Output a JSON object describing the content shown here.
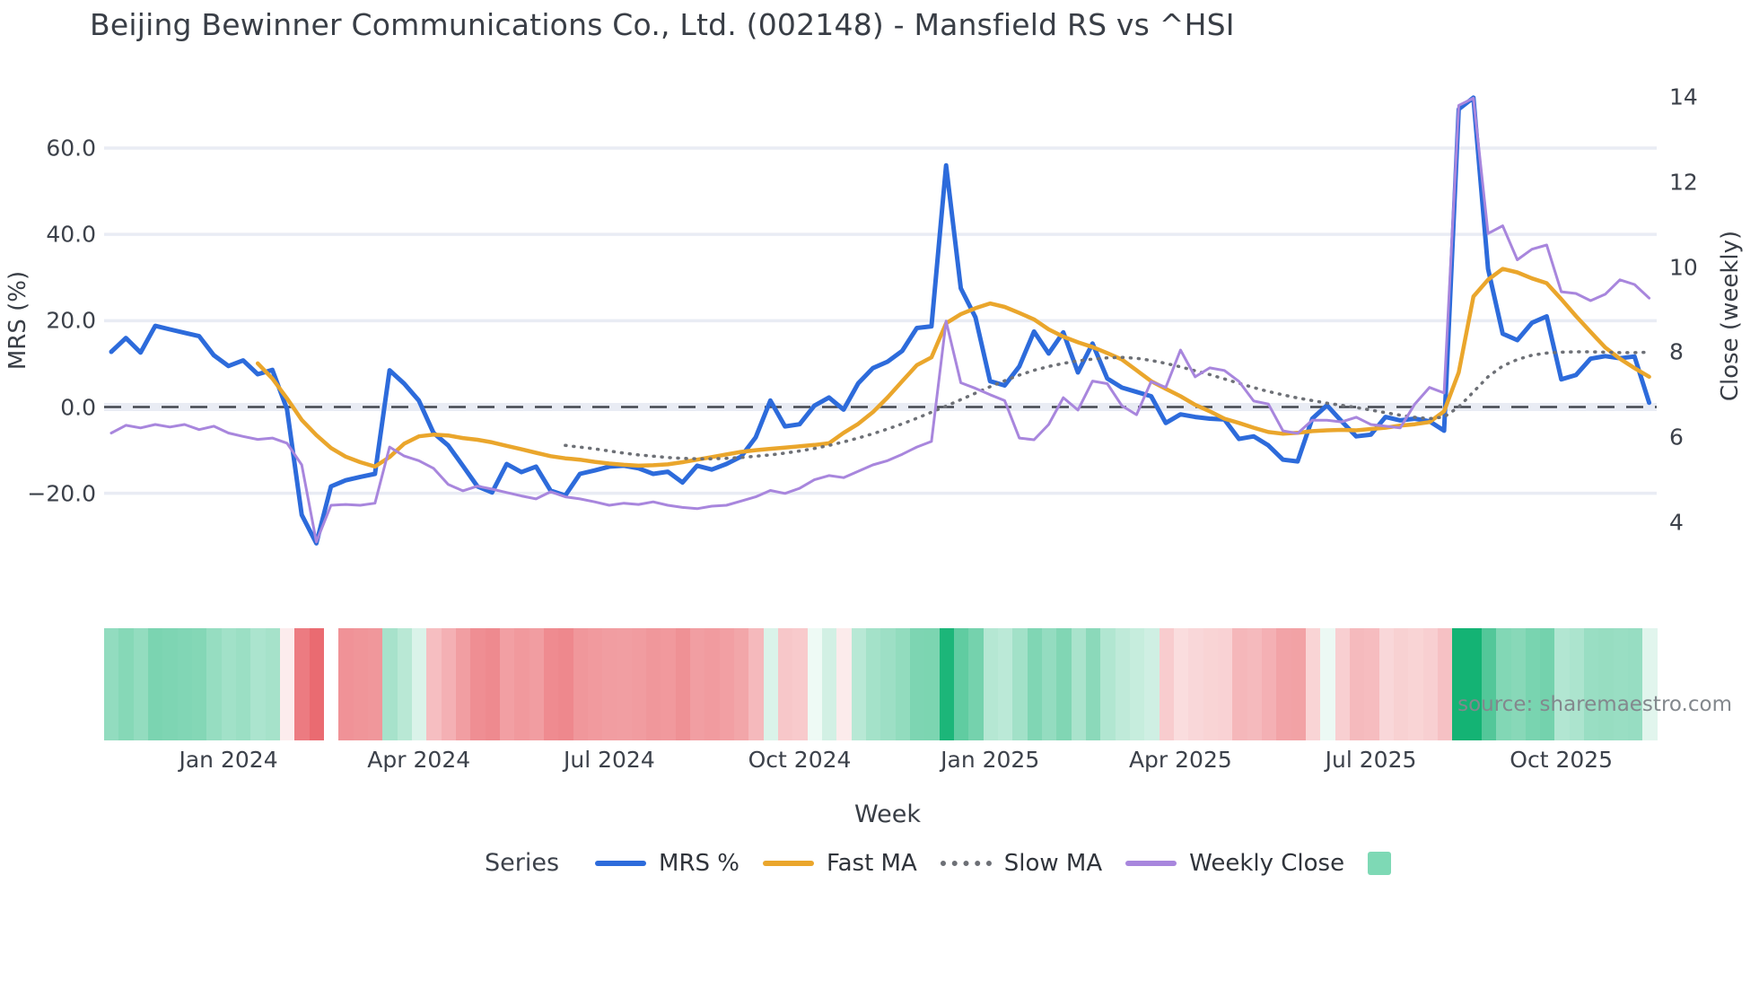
{
  "title": "Beijing Bewinner Communications Co., Ltd. (002148) - Mansfield RS vs ^HSI",
  "source_note": "source: sharemaestro.com",
  "legend": {
    "title": "Series",
    "items": [
      {
        "label": "MRS %",
        "swatch": "line",
        "color": "#2d6bdb"
      },
      {
        "label": "Fast MA",
        "swatch": "line",
        "color": "#eaa62c"
      },
      {
        "label": "Slow MA",
        "swatch": "dotted",
        "color": "#6d7076"
      },
      {
        "label": "Weekly Close",
        "swatch": "line",
        "color": "#a886dd"
      },
      {
        "label": "",
        "swatch": "square",
        "color": "#7ed9b5"
      }
    ]
  },
  "chart_data": {
    "type": "line",
    "title": "Beijing Bewinner Communications Co., Ltd. (002148) - Mansfield RS vs ^HSI",
    "xlabel": "Week",
    "ylabel_left": "MRS (%)",
    "ylabel_right": "Close (weekly)",
    "n_points": 106,
    "grid": true,
    "ylim_left": [
      -39,
      77
    ],
    "ylim_right": [
      2.8,
      14.5
    ],
    "y_ticks_left": [
      {
        "label": "60.0",
        "value": 60
      },
      {
        "label": "40.0",
        "value": 40
      },
      {
        "label": "20.0",
        "value": 20
      },
      {
        "label": "0.0",
        "value": 0
      },
      {
        "label": "−20.0",
        "value": -20
      }
    ],
    "y_ticks_right": [
      {
        "label": "14",
        "value": 14
      },
      {
        "label": "12",
        "value": 12
      },
      {
        "label": "10",
        "value": 10
      },
      {
        "label": "8",
        "value": 8
      },
      {
        "label": "6",
        "value": 6
      },
      {
        "label": "4",
        "value": 4
      }
    ],
    "x_ticks": [
      {
        "index": 8,
        "label": "Jan 2024"
      },
      {
        "index": 21,
        "label": "Apr 2024"
      },
      {
        "index": 34,
        "label": "Jul 2024"
      },
      {
        "index": 47,
        "label": "Oct 2024"
      },
      {
        "index": 60,
        "label": "Jan 2025"
      },
      {
        "index": 73,
        "label": "Apr 2025"
      },
      {
        "index": 86,
        "label": "Jul 2025"
      },
      {
        "index": 99,
        "label": "Oct 2025"
      }
    ],
    "zero_line": {
      "value": 0,
      "color": "#42464e",
      "style": "dashed"
    },
    "series": [
      {
        "name": "MRS %",
        "axis": "left",
        "color": "#2d6bdb",
        "width": 5,
        "style": "solid",
        "values": [
          12.8,
          16.0,
          12.6,
          18.8,
          18.0,
          17.2,
          16.4,
          12.0,
          9.5,
          10.8,
          7.6,
          8.6,
          -0.5,
          -25.0,
          -31.6,
          -18.4,
          -17.0,
          -16.2,
          -15.5,
          8.5,
          5.4,
          1.5,
          -6.0,
          -8.9,
          -13.6,
          -18.4,
          -19.8,
          -13.2,
          -15.1,
          -13.8,
          -19.4,
          -20.5,
          -15.5,
          -14.7,
          -13.8,
          -13.6,
          -14.2,
          -15.5,
          -15.0,
          -17.5,
          -13.6,
          -14.5,
          -13.2,
          -11.5,
          -7.0,
          1.5,
          -4.5,
          -4.0,
          0.3,
          2.2,
          -0.6,
          5.5,
          9.0,
          10.5,
          13.0,
          18.3,
          18.7,
          56.0,
          27.5,
          20.8,
          6.0,
          5.0,
          9.4,
          17.5,
          12.4,
          17.3,
          8.0,
          14.7,
          6.6,
          4.5,
          3.5,
          2.5,
          -3.7,
          -1.7,
          -2.3,
          -2.7,
          -2.9,
          -7.4,
          -6.8,
          -8.9,
          -12.2,
          -12.6,
          -2.7,
          0.4,
          -3.3,
          -6.8,
          -6.4,
          -2.3,
          -3.1,
          -2.7,
          -3.3,
          -5.5,
          69.0,
          71.7,
          32.0,
          17.0,
          15.5,
          19.5,
          21.0,
          6.4,
          7.4,
          11.2,
          11.8,
          11.3,
          11.7,
          1.0
        ]
      },
      {
        "name": "Fast MA",
        "axis": "left",
        "color": "#eaa62c",
        "width": 4.5,
        "style": "solid",
        "values": [
          null,
          null,
          null,
          null,
          null,
          null,
          null,
          null,
          null,
          null,
          10.1,
          6.6,
          2.0,
          -3.0,
          -6.5,
          -9.5,
          -11.5,
          -12.8,
          -13.8,
          -11.6,
          -8.5,
          -6.8,
          -6.4,
          -6.6,
          -7.2,
          -7.6,
          -8.2,
          -9.0,
          -9.8,
          -10.6,
          -11.4,
          -11.9,
          -12.2,
          -12.7,
          -13.1,
          -13.4,
          -13.6,
          -13.5,
          -13.3,
          -12.8,
          -12.2,
          -11.6,
          -11.0,
          -10.4,
          -10.0,
          -9.7,
          -9.4,
          -9.1,
          -8.8,
          -8.4,
          -6.0,
          -3.9,
          -1.2,
          2.2,
          6.0,
          9.7,
          11.5,
          19.4,
          21.5,
          22.9,
          24.0,
          23.2,
          21.8,
          20.3,
          18.0,
          16.3,
          15.0,
          13.9,
          12.5,
          11.0,
          8.5,
          6.0,
          4.2,
          2.5,
          0.5,
          -1.0,
          -2.7,
          -3.7,
          -4.8,
          -5.8,
          -6.2,
          -6.0,
          -5.6,
          -5.4,
          -5.3,
          -5.4,
          -5.1,
          -4.8,
          -4.3,
          -4.0,
          -3.5,
          -1.0,
          8.0,
          25.6,
          29.5,
          32.0,
          31.2,
          29.8,
          28.7,
          25.0,
          21.1,
          17.4,
          13.8,
          11.2,
          9.0,
          7.0
        ]
      },
      {
        "name": "Slow MA",
        "axis": "left",
        "color": "#6d7076",
        "width": 3.5,
        "style": "dotted",
        "values": [
          null,
          null,
          null,
          null,
          null,
          null,
          null,
          null,
          null,
          null,
          null,
          null,
          null,
          null,
          null,
          null,
          null,
          null,
          null,
          null,
          null,
          null,
          null,
          null,
          null,
          null,
          null,
          null,
          null,
          null,
          null,
          -8.9,
          -9.3,
          -9.7,
          -10.2,
          -10.7,
          -11.1,
          -11.4,
          -11.7,
          -11.9,
          -12.0,
          -12.0,
          -11.9,
          -11.7,
          -11.4,
          -11.1,
          -10.7,
          -10.2,
          -9.6,
          -8.9,
          -8.1,
          -7.2,
          -6.2,
          -5.1,
          -3.9,
          -2.6,
          -1.2,
          0.2,
          1.7,
          3.2,
          4.7,
          6.1,
          7.4,
          8.5,
          9.4,
          10.1,
          10.7,
          11.1,
          11.4,
          11.5,
          11.3,
          10.8,
          10.1,
          9.3,
          8.4,
          7.5,
          6.5,
          5.5,
          4.5,
          3.6,
          2.8,
          2.1,
          1.5,
          0.9,
          0.4,
          -0.1,
          -0.7,
          -1.3,
          -1.9,
          -2.4,
          -2.7,
          -2.3,
          0.0,
          3.5,
          7.0,
          9.5,
          11.0,
          12.0,
          12.5,
          12.7,
          12.8,
          12.8,
          12.7,
          12.6,
          12.6,
          12.7
        ]
      },
      {
        "name": "Weekly Close",
        "axis": "right",
        "color": "#a886dd",
        "width": 3,
        "style": "solid",
        "values": [
          6.1,
          6.28,
          6.22,
          6.3,
          6.24,
          6.3,
          6.18,
          6.26,
          6.1,
          6.02,
          5.95,
          5.98,
          5.86,
          5.35,
          3.54,
          4.4,
          4.42,
          4.4,
          4.45,
          5.77,
          5.56,
          5.45,
          5.27,
          4.89,
          4.74,
          4.85,
          4.78,
          4.7,
          4.62,
          4.55,
          4.72,
          4.6,
          4.55,
          4.48,
          4.4,
          4.45,
          4.42,
          4.48,
          4.4,
          4.35,
          4.32,
          4.38,
          4.4,
          4.5,
          4.6,
          4.75,
          4.68,
          4.8,
          5.0,
          5.1,
          5.05,
          5.2,
          5.35,
          5.45,
          5.6,
          5.77,
          5.9,
          8.73,
          7.28,
          7.15,
          7.0,
          6.86,
          5.98,
          5.94,
          6.3,
          6.93,
          6.64,
          7.32,
          7.26,
          6.74,
          6.53,
          7.31,
          7.17,
          8.05,
          7.42,
          7.63,
          7.57,
          7.31,
          6.85,
          6.78,
          6.15,
          6.09,
          6.4,
          6.4,
          6.36,
          6.47,
          6.3,
          6.26,
          6.22,
          6.78,
          7.17,
          7.04,
          13.8,
          13.97,
          10.79,
          10.97,
          10.17,
          10.42,
          10.52,
          9.42,
          9.38,
          9.21,
          9.36,
          9.7,
          9.59,
          9.27
        ]
      }
    ],
    "heatmap_strip": {
      "based_on": "MRS %",
      "positive_color": "#14b374",
      "negative_color": "#ea6a70",
      "neutral_color": "#ffffff",
      "positive_max": 60,
      "negative_max": 32,
      "gamma": 0.5,
      "holiday_weeks": [
        15
      ]
    }
  }
}
